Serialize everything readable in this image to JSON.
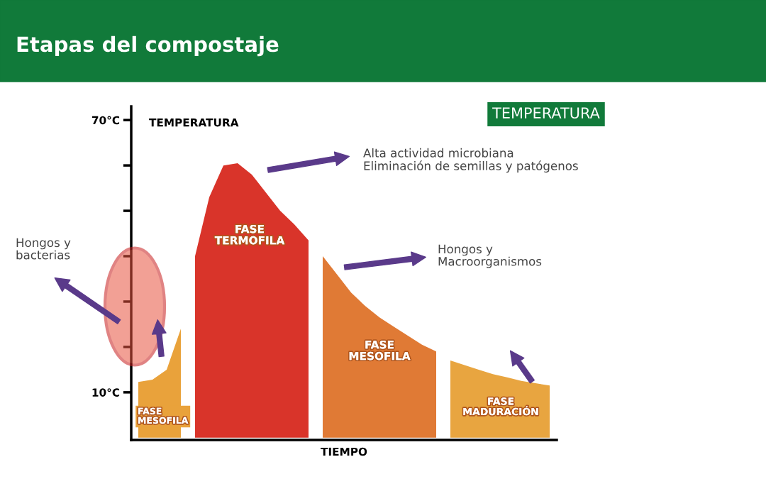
{
  "chart_data": {
    "type": "area",
    "title": "Etapas del compostaje",
    "ylabel": "TEMPERATURA",
    "xlabel": "TIEMPO",
    "categories": [
      null,
      null,
      null,
      null,
      null,
      null,
      null,
      null,
      null,
      null,
      null,
      null,
      null,
      null,
      null,
      null,
      null,
      null,
      null,
      null,
      null,
      null,
      null,
      null,
      null,
      null,
      null,
      null,
      null,
      null
    ],
    "series": [
      {
        "color": "#e9a23b",
        "values": [
          12.3,
          12.8,
          15,
          24,
          null,
          null,
          null,
          null,
          null,
          null,
          null,
          null,
          null,
          null,
          null,
          null,
          null,
          null,
          null,
          null,
          null,
          null,
          null,
          null,
          null,
          null,
          null,
          null,
          null,
          null
        ]
      },
      {
        "color": "#d9342a",
        "values": [
          null,
          null,
          null,
          null,
          40,
          53,
          60,
          60.5,
          58,
          54,
          50,
          47,
          43.5,
          null,
          null,
          null,
          null,
          null,
          null,
          null,
          null,
          null,
          null,
          null,
          null,
          null,
          null,
          null,
          null,
          null
        ]
      },
      {
        "color": "#e07a35",
        "values": [
          null,
          null,
          null,
          null,
          null,
          null,
          null,
          null,
          null,
          null,
          null,
          null,
          null,
          40,
          36,
          32,
          29,
          26.5,
          24.5,
          22.5,
          20.5,
          19,
          null,
          null,
          null,
          null,
          null,
          null,
          null,
          null
        ]
      },
      {
        "color": "#e8a540",
        "values": [
          null,
          null,
          null,
          null,
          null,
          null,
          null,
          null,
          null,
          null,
          null,
          null,
          null,
          null,
          null,
          null,
          null,
          null,
          null,
          null,
          null,
          null,
          17,
          16,
          15,
          14,
          13.3,
          12.5,
          12,
          11.5
        ]
      }
    ],
    "ylim": [
      -0.5,
      73
    ],
    "yticks": [
      {
        "value": 10,
        "label": "10°C"
      },
      {
        "value": 20,
        "label": null
      },
      {
        "value": 30,
        "label": null
      },
      {
        "value": 40,
        "label": null
      },
      {
        "value": 50,
        "label": null
      },
      {
        "value": 60,
        "label": null
      },
      {
        "value": 70,
        "label": "70°C"
      }
    ],
    "grid": false,
    "annotations": [
      "FASE\nMESOFILA",
      "FASE\nTERMOFILA",
      "FASE\nMESOFILA",
      "FASE\nMADURACIÓN",
      "TEMPERATURA",
      "Alta actividad microbiana\nEliminación de semillas y patógenos",
      "Hongos y\nMacroorganismos",
      "Hongos y\nbacterias"
    ]
  }
}
